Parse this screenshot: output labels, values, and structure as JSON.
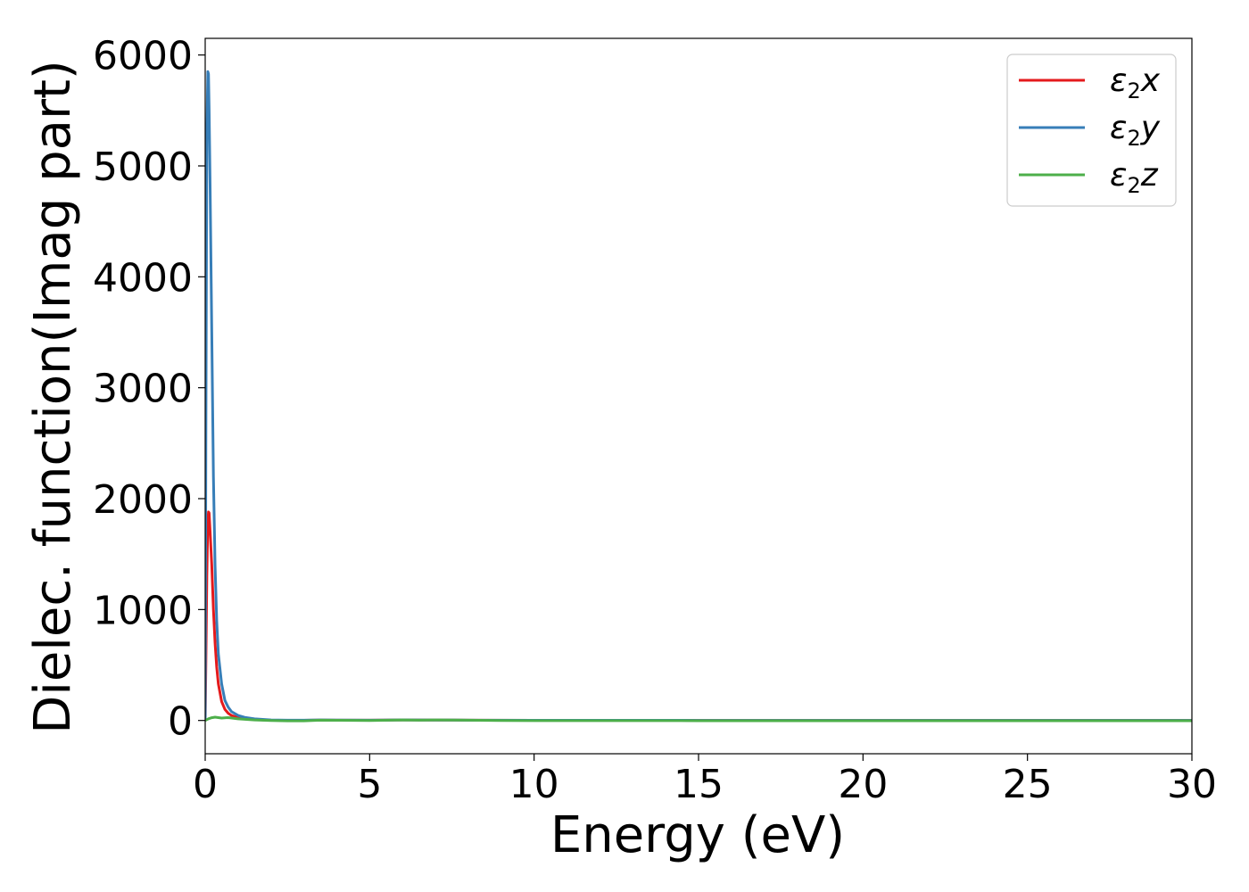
{
  "chart_data": {
    "type": "line",
    "title": "",
    "xlabel": "Energy (eV)",
    "ylabel": "Dielec. function(Imag part)",
    "xlim": [
      0,
      30
    ],
    "ylim": [
      -300,
      6150
    ],
    "x_ticks": [
      0,
      5,
      10,
      15,
      20,
      25,
      30
    ],
    "y_ticks": [
      0,
      1000,
      2000,
      3000,
      4000,
      5000,
      6000
    ],
    "grid": false,
    "legend_position": "top-right",
    "series": [
      {
        "name": "ε2x",
        "legend": {
          "base": "ε",
          "sub": "2",
          "var": "x"
        },
        "color": "#e41a1c",
        "x": [
          0,
          0.02,
          0.05,
          0.08,
          0.1,
          0.12,
          0.15,
          0.2,
          0.25,
          0.3,
          0.35,
          0.4,
          0.5,
          0.6,
          0.7,
          0.8,
          1.0,
          1.2,
          1.5,
          2.0,
          2.5,
          3.0,
          3.5,
          4.0,
          5.0,
          6.0,
          7.0,
          8.0,
          10.0,
          15.0,
          20.0,
          25.0,
          30.0
        ],
        "y": [
          0,
          500,
          1300,
          1800,
          1880,
          1870,
          1700,
          1400,
          1000,
          700,
          480,
          330,
          170,
          100,
          65,
          45,
          25,
          15,
          8,
          3,
          2,
          2,
          4,
          3,
          3,
          5,
          4,
          3,
          2,
          1,
          1,
          1,
          1
        ]
      },
      {
        "name": "ε2y",
        "legend": {
          "base": "ε",
          "sub": "2",
          "var": "y"
        },
        "color": "#377eb8",
        "x": [
          0,
          0.02,
          0.05,
          0.08,
          0.1,
          0.12,
          0.15,
          0.2,
          0.25,
          0.3,
          0.35,
          0.4,
          0.5,
          0.6,
          0.7,
          0.8,
          1.0,
          1.2,
          1.5,
          2.0,
          2.5,
          3.0,
          3.5,
          4.0,
          5.0,
          6.0,
          7.0,
          8.0,
          10.0,
          15.0,
          20.0,
          25.0,
          30.0
        ],
        "y": [
          0,
          2500,
          5300,
          5850,
          5830,
          5500,
          4800,
          3500,
          2200,
          1400,
          900,
          600,
          330,
          180,
          120,
          80,
          45,
          28,
          15,
          5,
          3,
          3,
          5,
          4,
          3,
          5,
          4,
          3,
          2,
          1,
          1,
          1,
          1
        ]
      },
      {
        "name": "ε2z",
        "legend": {
          "base": "ε",
          "sub": "2",
          "var": "z"
        },
        "color": "#4daf4a",
        "x": [
          0,
          0.1,
          0.2,
          0.3,
          0.5,
          0.7,
          1.0,
          1.5,
          2.0,
          2.5,
          3.0,
          3.5,
          4.0,
          5.0,
          6.0,
          6.5,
          7.0,
          7.5,
          8.0,
          9.0,
          10.0,
          15.0,
          20.0,
          25.0,
          30.0
        ],
        "y": [
          0,
          15,
          25,
          30,
          22,
          26,
          15,
          5,
          0,
          -3,
          -3,
          3,
          2,
          0,
          5,
          3,
          5,
          4,
          3,
          0,
          -1,
          -2,
          -2,
          -2,
          -2
        ]
      }
    ]
  }
}
